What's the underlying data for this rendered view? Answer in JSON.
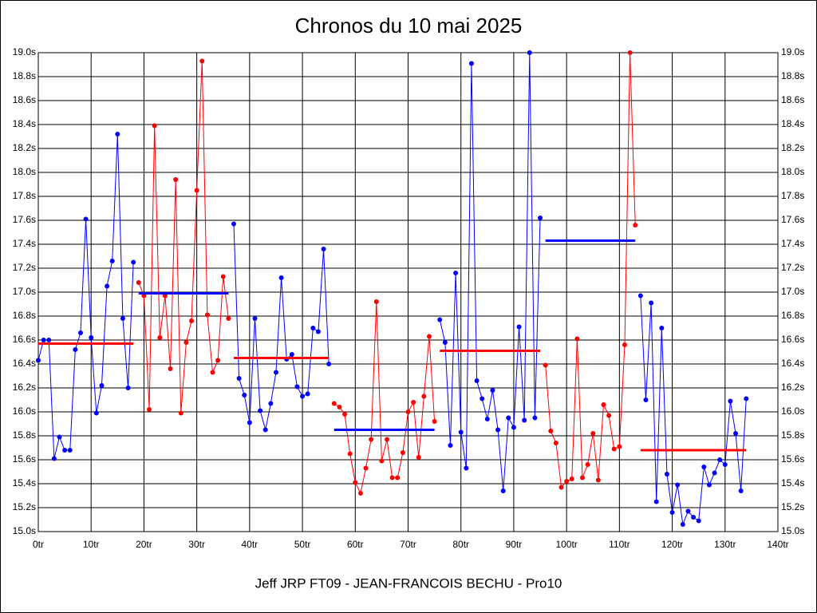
{
  "chart_data": {
    "type": "line",
    "title": "Chronos du 10 mai 2025",
    "footer": "Jeff JRP FT09 - JEAN-FRANCOIS BECHU - Pro10",
    "grid": true,
    "xlim": [
      0,
      140
    ],
    "ylim": [
      15.0,
      19.0
    ],
    "xticks": [
      {
        "value": 0,
        "label": "0tr"
      },
      {
        "value": 10,
        "label": "10tr"
      },
      {
        "value": 20,
        "label": "20tr"
      },
      {
        "value": 30,
        "label": "30tr"
      },
      {
        "value": 40,
        "label": "40tr"
      },
      {
        "value": 50,
        "label": "50tr"
      },
      {
        "value": 60,
        "label": "60tr"
      },
      {
        "value": 70,
        "label": "70tr"
      },
      {
        "value": 80,
        "label": "80tr"
      },
      {
        "value": 90,
        "label": "90tr"
      },
      {
        "value": 100,
        "label": "100tr"
      },
      {
        "value": 110,
        "label": "110tr"
      },
      {
        "value": 120,
        "label": "120tr"
      },
      {
        "value": 130,
        "label": "130tr"
      },
      {
        "value": 140,
        "label": "140tr"
      }
    ],
    "yticks": [
      {
        "value": 15.0,
        "label": "15.0s"
      },
      {
        "value": 15.2,
        "label": "15.2s"
      },
      {
        "value": 15.4,
        "label": "15.4s"
      },
      {
        "value": 15.6,
        "label": "15.6s"
      },
      {
        "value": 15.8,
        "label": "15.8s"
      },
      {
        "value": 16.0,
        "label": "16.0s"
      },
      {
        "value": 16.2,
        "label": "16.2s"
      },
      {
        "value": 16.4,
        "label": "16.4s"
      },
      {
        "value": 16.6,
        "label": "16.6s"
      },
      {
        "value": 16.8,
        "label": "16.8s"
      },
      {
        "value": 17.0,
        "label": "17.0s"
      },
      {
        "value": 17.2,
        "label": "17.2s"
      },
      {
        "value": 17.4,
        "label": "17.4s"
      },
      {
        "value": 17.6,
        "label": "17.6s"
      },
      {
        "value": 17.8,
        "label": "17.8s"
      },
      {
        "value": 18.0,
        "label": "18.0s"
      },
      {
        "value": 18.2,
        "label": "18.2s"
      },
      {
        "value": 18.4,
        "label": "18.4s"
      },
      {
        "value": 18.6,
        "label": "18.6s"
      },
      {
        "value": 18.8,
        "label": "18.8s"
      },
      {
        "value": 19.0,
        "label": "19.0s"
      }
    ],
    "series": [
      {
        "color": "#0000ff",
        "mean_color": "#ff0000",
        "mean": 16.57,
        "x": [
          0,
          1,
          2,
          3,
          4,
          5,
          6,
          7,
          8,
          9,
          10,
          11,
          12,
          13,
          14,
          15,
          16,
          17,
          18
        ],
        "values": [
          16.43,
          16.6,
          16.6,
          15.61,
          15.79,
          15.68,
          15.68,
          16.52,
          16.66,
          17.61,
          16.62,
          15.99,
          16.22,
          17.05,
          17.26,
          18.32,
          16.78,
          16.2,
          17.25
        ]
      },
      {
        "color": "#ff0000",
        "mean_color": "#0000ff",
        "mean": 16.99,
        "x": [
          19,
          20,
          21,
          22,
          23,
          24,
          25,
          26,
          27,
          28,
          29,
          30,
          31,
          32,
          33,
          34,
          35,
          36
        ],
        "values": [
          17.08,
          16.97,
          16.02,
          18.39,
          16.62,
          16.97,
          16.36,
          17.94,
          15.99,
          16.58,
          16.76,
          17.85,
          18.93,
          16.81,
          16.33,
          16.43,
          17.13,
          16.78
        ]
      },
      {
        "color": "#0000ff",
        "mean_color": "#ff0000",
        "mean": 16.45,
        "x": [
          37,
          38,
          39,
          40,
          41,
          42,
          43,
          44,
          45,
          46,
          47,
          48,
          49,
          50,
          51,
          52,
          53,
          54,
          55
        ],
        "values": [
          17.57,
          16.28,
          16.14,
          15.91,
          16.78,
          16.01,
          15.85,
          16.07,
          16.33,
          17.12,
          16.44,
          16.48,
          16.21,
          16.13,
          16.15,
          16.7,
          16.67,
          17.36,
          16.4
        ]
      },
      {
        "color": "#ff0000",
        "mean_color": "#0000ff",
        "mean": 15.85,
        "x": [
          56,
          57,
          58,
          59,
          60,
          61,
          62,
          63,
          64,
          65,
          66,
          67,
          68,
          69,
          70,
          71,
          72,
          73,
          74,
          75
        ],
        "values": [
          16.07,
          16.04,
          15.98,
          15.65,
          15.41,
          15.32,
          15.53,
          15.77,
          16.92,
          15.59,
          15.77,
          15.45,
          15.45,
          15.66,
          16.0,
          16.08,
          15.62,
          16.13,
          16.63,
          15.92
        ]
      },
      {
        "color": "#0000ff",
        "mean_color": "#ff0000",
        "mean": 16.51,
        "x": [
          76,
          77,
          78,
          79,
          80,
          81,
          82,
          83,
          84,
          85,
          86,
          87,
          88,
          89,
          90,
          91,
          92,
          93,
          94,
          95
        ],
        "values": [
          16.77,
          16.58,
          15.72,
          17.16,
          15.83,
          15.53,
          18.91,
          16.26,
          16.11,
          15.94,
          16.18,
          15.85,
          15.34,
          15.95,
          15.87,
          16.71,
          15.93,
          19.0,
          15.95,
          17.62
        ]
      },
      {
        "color": "#ff0000",
        "mean_color": "#0000ff",
        "mean": 17.43,
        "x": [
          96,
          97,
          98,
          99,
          100,
          101,
          102,
          103,
          104,
          105,
          106,
          107,
          108,
          109,
          110,
          111,
          112,
          113
        ],
        "values": [
          16.39,
          15.84,
          15.74,
          15.37,
          15.42,
          15.44,
          16.61,
          15.45,
          15.56,
          15.82,
          15.43,
          16.06,
          15.97,
          15.69,
          15.71,
          16.56,
          19.0,
          17.56
        ]
      },
      {
        "color": "#0000ff",
        "mean_color": "#ff0000",
        "mean": 15.68,
        "x": [
          114,
          115,
          116,
          117,
          118,
          119,
          120,
          121,
          122,
          123,
          124,
          125,
          126,
          127,
          128,
          129,
          130,
          131,
          132,
          133,
          134
        ],
        "values": [
          16.97,
          16.1,
          16.91,
          15.25,
          16.7,
          15.48,
          15.16,
          15.39,
          15.06,
          15.17,
          15.12,
          15.09,
          15.54,
          15.39,
          15.49,
          15.6,
          15.56,
          16.09,
          15.82,
          15.34,
          16.11
        ]
      }
    ]
  }
}
